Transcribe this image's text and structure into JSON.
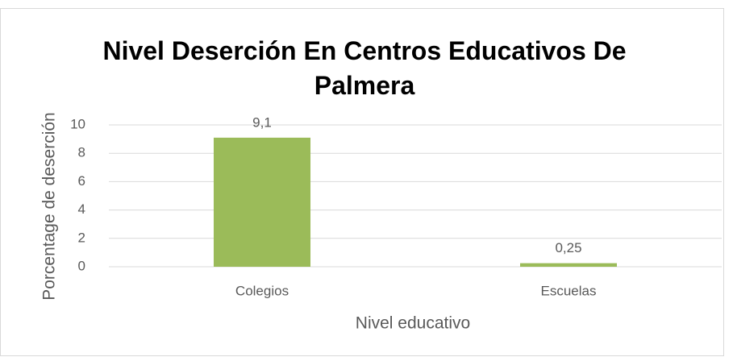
{
  "chart_data": {
    "type": "bar",
    "title": "Nivel Deserción En Centros Educativos De Palmera",
    "categories": [
      "Colegios",
      "Escuelas"
    ],
    "values": [
      9.1,
      0.25
    ],
    "value_labels": [
      "9,1",
      "0,25"
    ],
    "color": "#9bbb59",
    "xlabel": "Nivel educativo",
    "ylabel": "Porcentage de deserción",
    "ylim": [
      0,
      10
    ],
    "yticks": [
      0,
      2,
      4,
      6,
      8,
      10
    ],
    "grid": true
  }
}
